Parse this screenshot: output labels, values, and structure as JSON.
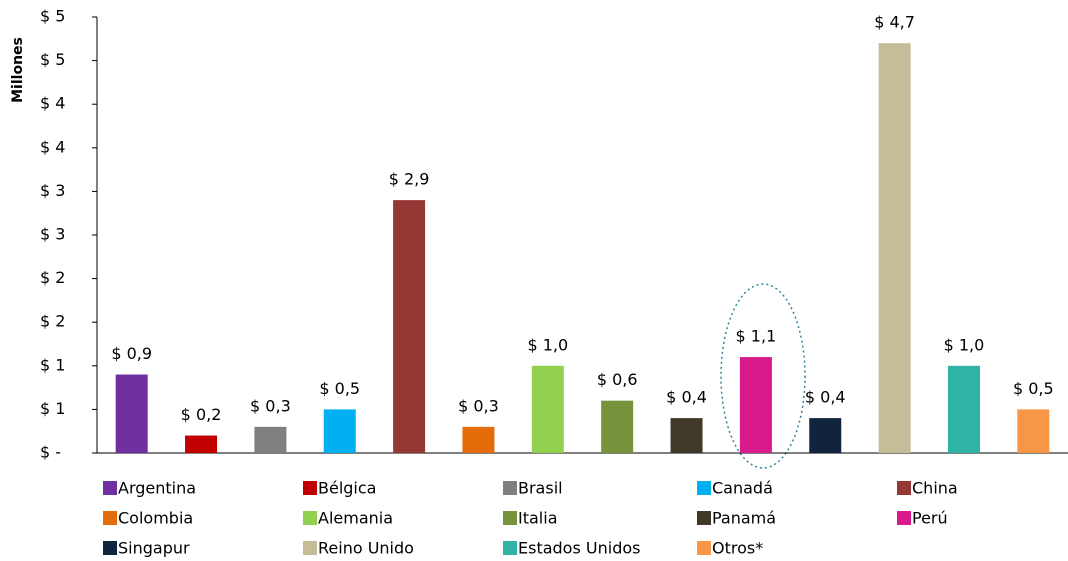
{
  "chart_data": {
    "type": "bar",
    "y_label": "Millones",
    "categories": [
      "Argentina",
      "Bélgica",
      "Brasil",
      "Canadá",
      "China",
      "Colombia",
      "Alemania",
      "Italia",
      "Panamá",
      "Perú",
      "Singapur",
      "Reino Unido",
      "Estados Unidos",
      "Otros*"
    ],
    "values": [
      0.9,
      0.2,
      0.3,
      0.5,
      2.9,
      0.3,
      1.0,
      0.6,
      0.4,
      1.1,
      0.4,
      4.7,
      1.0,
      0.5
    ],
    "value_labels": [
      "$ 0,9",
      "$ 0,2",
      "$ 0,3",
      "$ 0,5",
      "$ 2,9",
      "$ 0,3",
      "$ 1,0",
      "$ 0,6",
      "$ 0,4",
      "$ 1,1",
      "$ 0,4",
      "$ 4,7",
      "$ 1,0",
      "$ 0,5"
    ],
    "colors": [
      "#7030a0",
      "#c00000",
      "#7f7f7f",
      "#00b0f0",
      "#953735",
      "#e46c0a",
      "#92d050",
      "#77933c",
      "#403828",
      "#d91a8c",
      "#10243e",
      "#c4bd97",
      "#2fb3a5",
      "#f79646"
    ],
    "ylim": [
      0,
      5
    ],
    "yticks": [
      {
        "value": 0,
        "label": "$ -"
      },
      {
        "value": 0.5,
        "label": "$ 1"
      },
      {
        "value": 1,
        "label": "$ 1"
      },
      {
        "value": 1.5,
        "label": "$ 2"
      },
      {
        "value": 2,
        "label": "$ 2"
      },
      {
        "value": 2.5,
        "label": "$ 3"
      },
      {
        "value": 3,
        "label": "$ 3"
      },
      {
        "value": 3.5,
        "label": "$ 4"
      },
      {
        "value": 4,
        "label": "$ 4"
      },
      {
        "value": 4.5,
        "label": "$ 5"
      },
      {
        "value": 5,
        "label": "$ 5"
      }
    ],
    "legend": "bottom"
  }
}
